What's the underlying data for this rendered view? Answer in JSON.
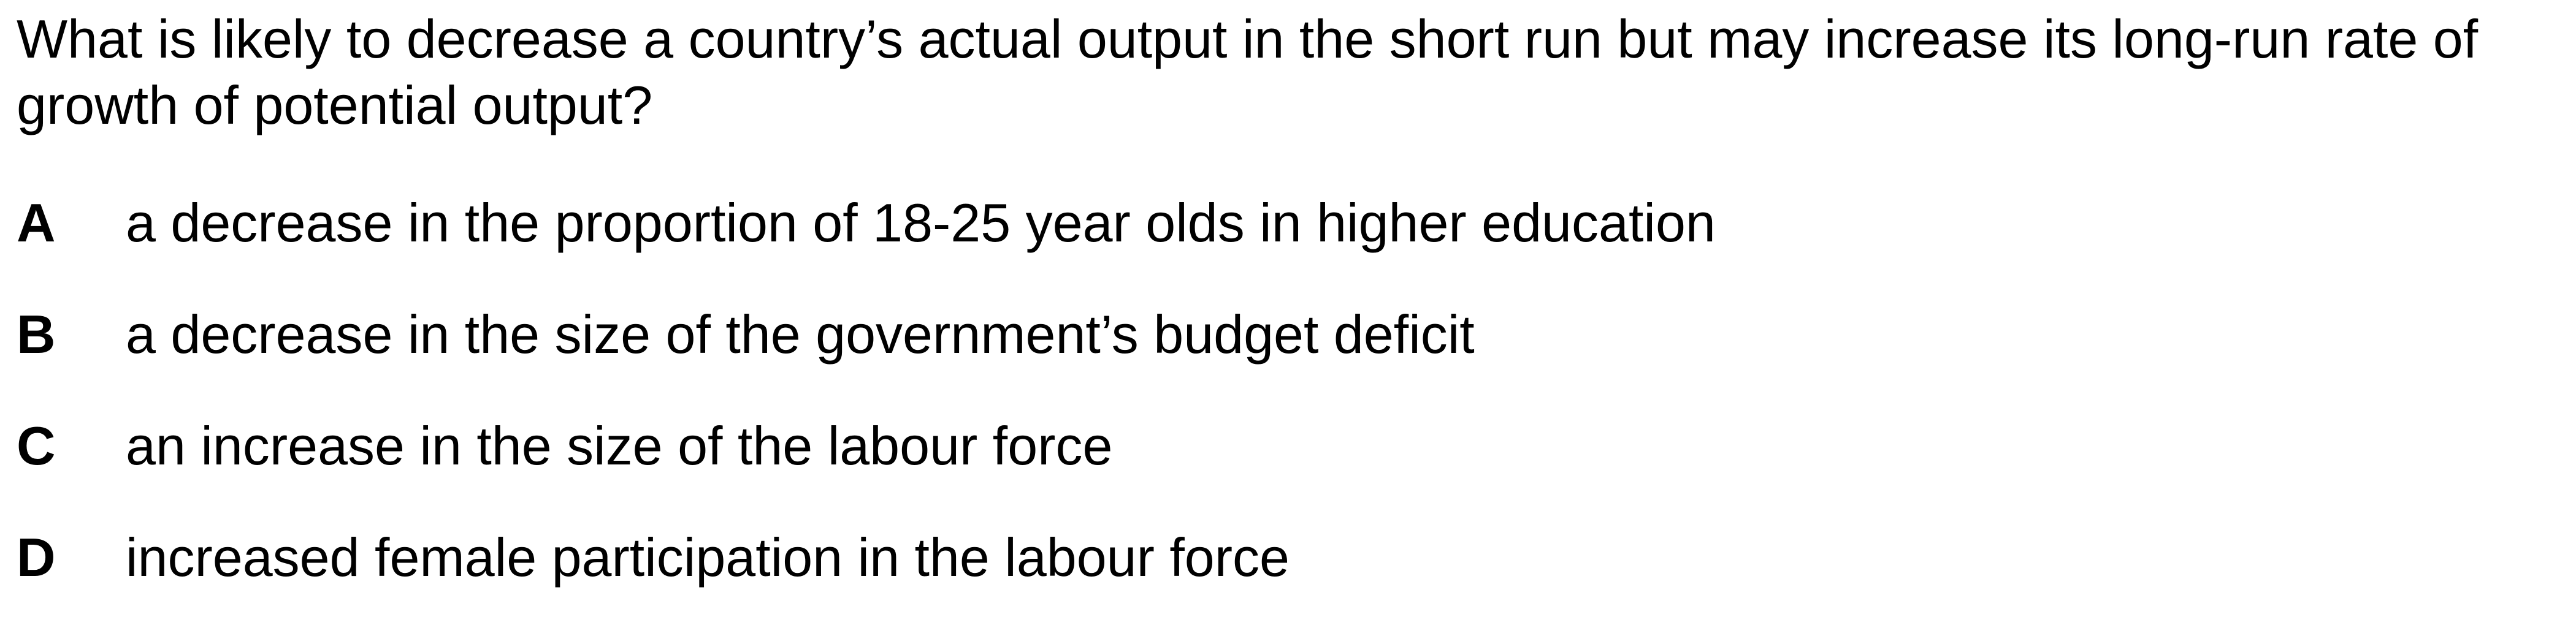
{
  "question": {
    "text": "What is likely to decrease a country’s actual output in the short run but may increase its long-run rate of growth of potential output?"
  },
  "options": [
    {
      "letter": "A",
      "text": "a decrease in the proportion of 18-25 year olds in higher education"
    },
    {
      "letter": "B",
      "text": "a decrease in the size of the government’s budget deficit"
    },
    {
      "letter": "C",
      "text": "an increase in the size of the labour force"
    },
    {
      "letter": "D",
      "text": "increased female participation in the labour force"
    }
  ]
}
